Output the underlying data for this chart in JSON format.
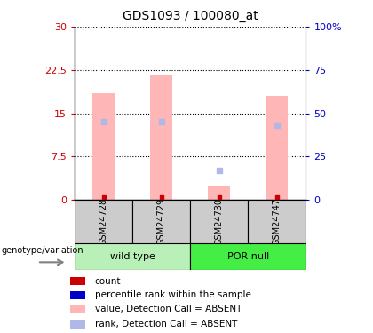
{
  "title": "GDS1093 / 100080_at",
  "samples": [
    "GSM24728",
    "GSM24729",
    "GSM24730",
    "GSM24747"
  ],
  "groups": [
    "wild type",
    "wild type",
    "POR null",
    "POR null"
  ],
  "group_labels": [
    "wild type",
    "POR null"
  ],
  "group_colors_light": "#b8f0b8",
  "group_colors_bright": "#44ee44",
  "bar_color_absent": "#ffb6b6",
  "rank_color_absent": "#b0b8e8",
  "count_color": "#cc0000",
  "rank_color": "#0000cc",
  "ylim_left": [
    0,
    30
  ],
  "ylim_right": [
    0,
    100
  ],
  "yticks_left": [
    0,
    7.5,
    15,
    22.5,
    30
  ],
  "yticks_right": [
    0,
    25,
    50,
    75,
    100
  ],
  "ytick_labels_left": [
    "0",
    "7.5",
    "15",
    "22.5",
    "30"
  ],
  "ytick_labels_right": [
    "0",
    "25",
    "50",
    "75",
    "100%"
  ],
  "values_absent": [
    18.5,
    21.5,
    2.5,
    18.0
  ],
  "ranks_absent_pct": [
    45,
    45,
    17,
    43
  ],
  "bg_color_sample": "#cccccc",
  "legend_items": [
    {
      "color": "#cc0000",
      "label": "count"
    },
    {
      "color": "#0000cc",
      "label": "percentile rank within the sample"
    },
    {
      "color": "#ffb6b6",
      "label": "value, Detection Call = ABSENT"
    },
    {
      "color": "#b0b8e8",
      "label": "rank, Detection Call = ABSENT"
    }
  ],
  "xlabel_genotype": "genotype/variation"
}
